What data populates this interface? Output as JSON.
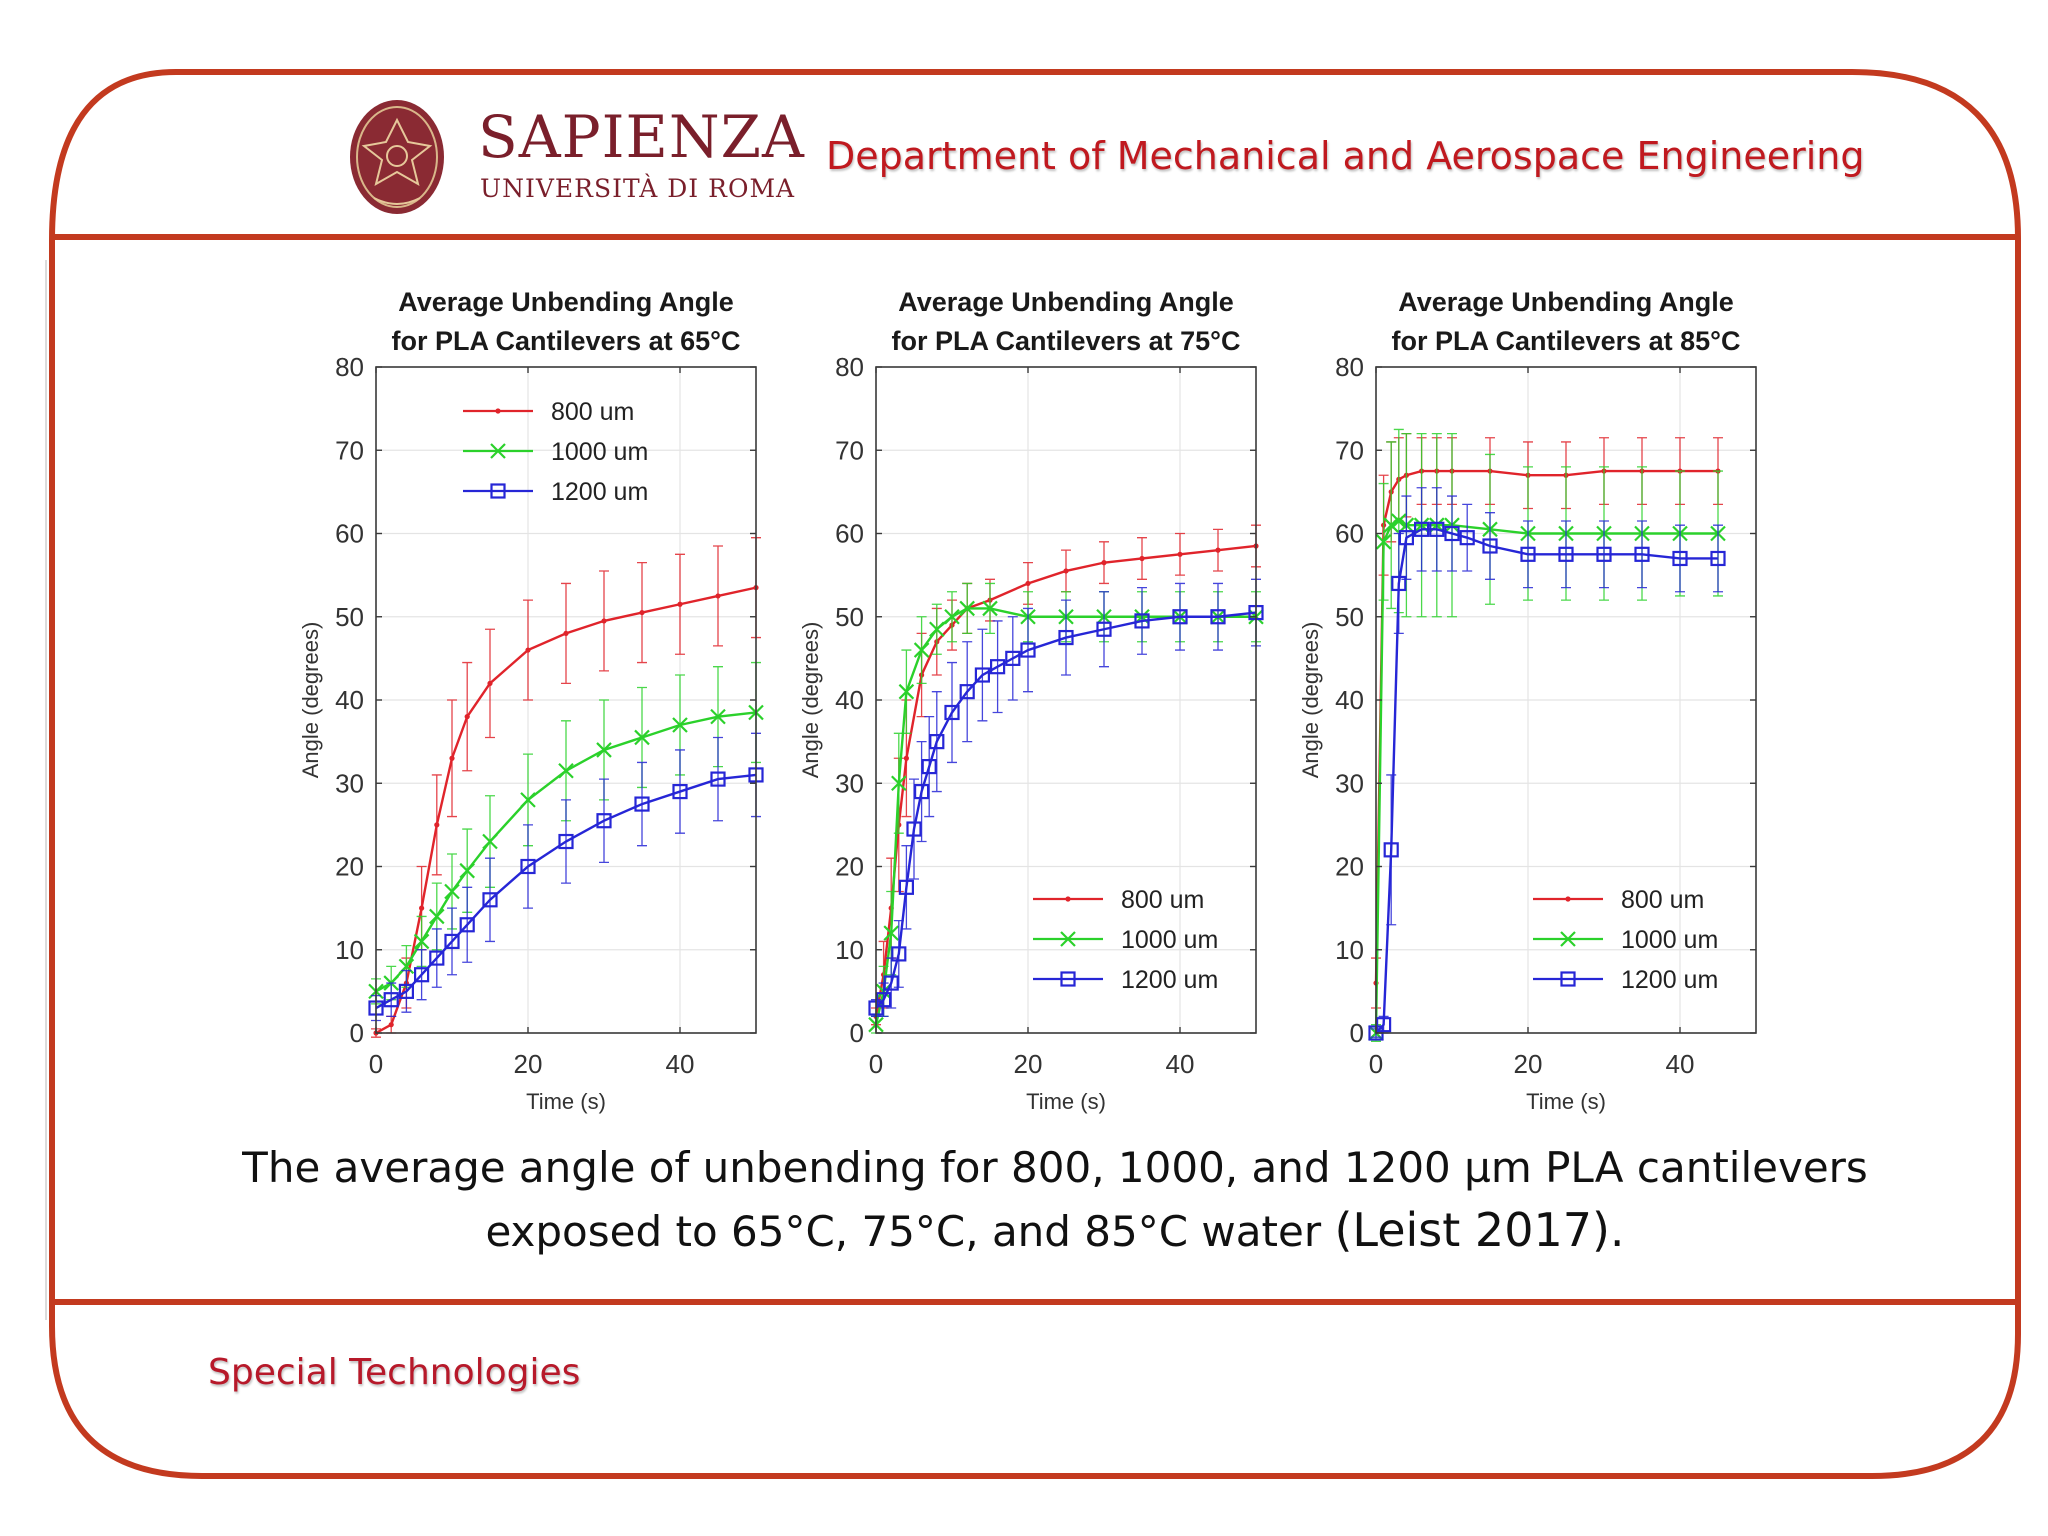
{
  "header": {
    "brand_name": "SAPIENZA",
    "brand_subtitle": "UNIVERSITÀ DI ROMA",
    "logo_text": "SAPIENZA UNIVERSITÀ DI ROMA",
    "department": "Department of Mechanical and Aerospace Engineering"
  },
  "caption": {
    "main": "The average angle of unbending for 800, 1000, and 1200 µm PLA cantilevers exposed to 65°C, 75°C, and 85°C water",
    "citation": "(Leist 2017)."
  },
  "footer": {
    "label": "Special Technologies"
  },
  "colors": {
    "frame": "#c33a1f",
    "brand": "#7a1f2b",
    "accent_text": "#c0191f",
    "s800": "#e0242b",
    "s1000": "#2bd12b",
    "s1200": "#2626d6"
  },
  "chart_data": [
    {
      "type": "line",
      "title": [
        "Average Unbending Angle",
        "for PLA Cantilevers at 65°C"
      ],
      "xlabel": "Time (s)",
      "ylabel": "Angle (degrees)",
      "xlim": [
        0,
        50
      ],
      "ylim": [
        0,
        80
      ],
      "xticks": [
        0,
        20,
        40
      ],
      "yticks": [
        0,
        10,
        20,
        30,
        40,
        50,
        60,
        70,
        80
      ],
      "grid": true,
      "legend_position": "top-left",
      "series": [
        {
          "name": "800 um",
          "marker": "dot",
          "color": "#e0242b",
          "x": [
            0,
            2,
            4,
            6,
            8,
            10,
            12,
            15,
            20,
            25,
            30,
            35,
            40,
            45,
            50
          ],
          "y": [
            0,
            1,
            6,
            15,
            25,
            33,
            38,
            42,
            46,
            48,
            49.5,
            50.5,
            51.5,
            52.5,
            53.5
          ],
          "err": [
            0.5,
            1,
            3,
            5,
            6,
            7,
            6.5,
            6.5,
            6,
            6,
            6,
            6,
            6,
            6,
            6
          ]
        },
        {
          "name": "1000 um",
          "marker": "x",
          "color": "#2bd12b",
          "x": [
            0,
            2,
            4,
            6,
            8,
            10,
            12,
            15,
            20,
            25,
            30,
            35,
            40,
            45,
            50
          ],
          "y": [
            5,
            6,
            8,
            11,
            14,
            17,
            19.5,
            23,
            28,
            31.5,
            34,
            35.5,
            37,
            38,
            38.5
          ],
          "err": [
            1.5,
            2,
            2.5,
            3,
            4,
            4.5,
            5,
            5.5,
            5.5,
            6,
            6,
            6,
            6,
            6,
            6
          ]
        },
        {
          "name": "1200 um",
          "marker": "square",
          "color": "#2626d6",
          "x": [
            0,
            2,
            4,
            6,
            8,
            10,
            12,
            15,
            20,
            25,
            30,
            35,
            40,
            45,
            50
          ],
          "y": [
            3,
            4,
            5,
            7,
            9,
            11,
            13,
            16,
            20,
            23,
            25.5,
            27.5,
            29,
            30.5,
            31
          ],
          "err": [
            1.5,
            2,
            2.5,
            3,
            3.5,
            4,
            4.5,
            5,
            5,
            5,
            5,
            5,
            5,
            5,
            5
          ]
        }
      ]
    },
    {
      "type": "line",
      "title": [
        "Average Unbending Angle",
        "for PLA Cantilevers at 75°C"
      ],
      "xlabel": "Time (s)",
      "ylabel": "Angle (degrees)",
      "xlim": [
        0,
        50
      ],
      "ylim": [
        0,
        80
      ],
      "xticks": [
        0,
        20,
        40
      ],
      "yticks": [
        0,
        10,
        20,
        30,
        40,
        50,
        60,
        70,
        80
      ],
      "grid": true,
      "legend_position": "bottom-right",
      "series": [
        {
          "name": "800 um",
          "marker": "dot",
          "color": "#e0242b",
          "x": [
            0,
            1,
            2,
            3,
            4,
            6,
            8,
            10,
            12,
            15,
            20,
            25,
            30,
            35,
            40,
            45,
            50
          ],
          "y": [
            2,
            7,
            15,
            25,
            33,
            43,
            47,
            49,
            51,
            52,
            54,
            55.5,
            56.5,
            57,
            57.5,
            58,
            58.5
          ],
          "err": [
            1,
            4,
            6,
            8,
            7,
            5,
            4,
            3,
            3,
            2.5,
            2.5,
            2.5,
            2.5,
            2.5,
            2.5,
            2.5,
            2.5
          ]
        },
        {
          "name": "1000 um",
          "marker": "x",
          "color": "#2bd12b",
          "x": [
            0,
            1,
            2,
            3,
            4,
            6,
            8,
            10,
            12,
            15,
            20,
            25,
            30,
            35,
            40,
            45,
            50
          ],
          "y": [
            1,
            5,
            12,
            30,
            41,
            46,
            48.5,
            50,
            51,
            51,
            50,
            50,
            50,
            50,
            50,
            50,
            50
          ],
          "err": [
            1,
            3,
            5,
            6,
            5,
            4,
            3,
            3,
            3,
            3,
            3,
            3,
            3,
            3,
            3,
            3,
            3
          ]
        },
        {
          "name": "1200 um",
          "marker": "square",
          "color": "#2626d6",
          "x": [
            0,
            1,
            2,
            3,
            4,
            5,
            6,
            7,
            8,
            10,
            12,
            14,
            16,
            18,
            20,
            25,
            30,
            35,
            40,
            45,
            50
          ],
          "y": [
            3,
            4,
            6,
            9.5,
            17.5,
            24.5,
            29,
            32,
            35,
            38.5,
            41,
            43,
            44,
            45,
            46,
            47.5,
            48.5,
            49.5,
            50,
            50,
            50.5
          ],
          "err": [
            1,
            2,
            3,
            4,
            5,
            6,
            6,
            6,
            6,
            6,
            6,
            5.5,
            5.5,
            5,
            5,
            4.5,
            4.5,
            4,
            4,
            4,
            4
          ]
        }
      ]
    },
    {
      "type": "line",
      "title": [
        "Average Unbending Angle",
        "for PLA Cantilevers at 85°C"
      ],
      "xlabel": "Time (s)",
      "ylabel": "Angle (degrees)",
      "xlim": [
        0,
        50
      ],
      "ylim": [
        0,
        80
      ],
      "xticks": [
        0,
        20,
        40
      ],
      "yticks": [
        0,
        10,
        20,
        30,
        40,
        50,
        60,
        70,
        80
      ],
      "grid": true,
      "legend_position": "bottom-right",
      "series": [
        {
          "name": "800 um",
          "marker": "dot",
          "color": "#e0242b",
          "x": [
            0,
            1,
            2,
            3,
            4,
            6,
            8,
            10,
            15,
            20,
            25,
            30,
            35,
            40,
            45
          ],
          "y": [
            6,
            61,
            65,
            66.5,
            67,
            67.5,
            67.5,
            67.5,
            67.5,
            67,
            67,
            67.5,
            67.5,
            67.5,
            67.5
          ],
          "err": [
            3,
            6,
            6,
            5,
            5,
            4,
            4,
            4,
            4,
            4,
            4,
            4,
            4,
            4,
            4
          ]
        },
        {
          "name": "1000 um",
          "marker": "x",
          "color": "#2bd12b",
          "x": [
            0,
            1,
            2,
            3,
            4,
            6,
            8,
            10,
            15,
            20,
            25,
            30,
            35,
            40,
            45
          ],
          "y": [
            0,
            59,
            61,
            61.5,
            61,
            61,
            61,
            61,
            60.5,
            60,
            60,
            60,
            60,
            60,
            60
          ],
          "err": [
            1,
            7,
            10,
            11,
            11,
            11,
            11,
            11,
            9,
            8,
            8,
            8,
            8,
            7.5,
            7.5
          ]
        },
        {
          "name": "1200 um",
          "marker": "square",
          "color": "#2626d6",
          "x": [
            0,
            1,
            2,
            3,
            4,
            6,
            8,
            10,
            12,
            15,
            20,
            25,
            30,
            35,
            40,
            45
          ],
          "y": [
            0,
            1,
            22,
            54,
            59.5,
            60.5,
            60.5,
            60,
            59.5,
            58.5,
            57.5,
            57.5,
            57.5,
            57.5,
            57,
            57
          ],
          "err": [
            0.5,
            1,
            9,
            6,
            5,
            5,
            5,
            4.5,
            4,
            4,
            4,
            4,
            4,
            4,
            4,
            4
          ]
        }
      ]
    }
  ]
}
